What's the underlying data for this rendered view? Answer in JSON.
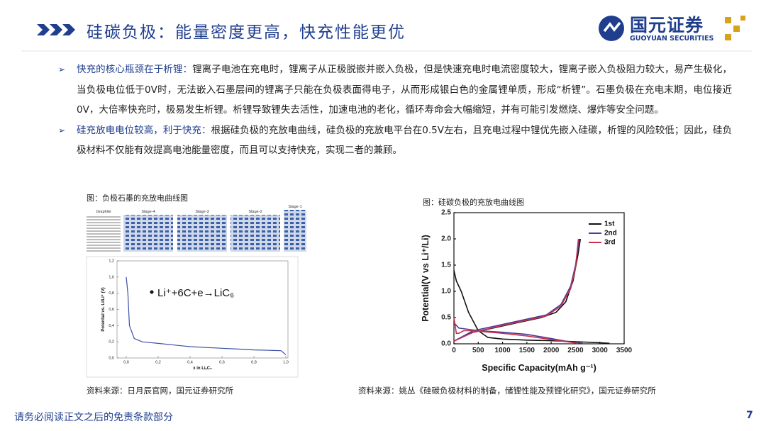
{
  "header": {
    "title": "硅碳负极：能量密度更高，快充性能更优",
    "logo": {
      "name": "国元证券",
      "subtitle": "GUOYUAN SECURITIES"
    }
  },
  "bullets": [
    {
      "lead": "快充的核心瓶颈在于析锂：",
      "text": "锂离子电池在充电时，锂离子从正极脱嵌并嵌入负极，但是快速充电时电流密度较大，锂离子嵌入负极阻力较大，易产生极化，当负极电位低于0V时，无法嵌入石墨层间的锂离子只能在负极表面得电子，从而形成银白色的金属锂单质，形成“析锂”。石墨负极在充电末期，电位接近0V，大倍率快充时，极易发生析锂。析锂导致锂失去活性，加速电池的老化，循环寿命会大幅缩短，并有可能引发燃烧、爆炸等安全问题。"
    },
    {
      "lead": "硅充放电电位较高，利于快充：",
      "text": "根据硅负极的充放电曲线，硅负极的充放电平台在0.5V左右，且充电过程中锂优先嵌入硅碳，析锂的风险较低；因此，硅负极材料不仅能有效提高电池能量密度，而且可以支持快充，实现二者的兼顾。"
    }
  ],
  "figures": [
    {
      "caption": "图：负极石墨的充放电曲线图",
      "source": "资料来源：日月辰官网，国元证券研究所",
      "stages": [
        "Graphite",
        "Stage-4",
        "Stage-3",
        "Stage-2",
        "Stage-1"
      ],
      "chart": {
        "type": "line",
        "annotation": "Li⁺+6C+e→LiC₆",
        "x_label": "x in LiₓC₆",
        "y_label": "Potential vs. Li/Li⁺ (V)",
        "xlim": [
          0,
          1
        ],
        "ylim": [
          0,
          1.2
        ],
        "xticks": [
          {
            "value": 0,
            "label": "0,0"
          },
          {
            "value": 0.2,
            "label": "0,2"
          },
          {
            "value": 0.4,
            "label": "0,4"
          },
          {
            "value": 0.6,
            "label": "0,6"
          },
          {
            "value": 0.8,
            "label": "0,8"
          },
          {
            "value": 1,
            "label": "1,0"
          }
        ],
        "yticks": [
          {
            "value": 0,
            "label": "0,0"
          },
          {
            "value": 0.2,
            "label": "0,2"
          },
          {
            "value": 0.4,
            "label": "0,4"
          },
          {
            "value": 0.6,
            "label": "0,6"
          },
          {
            "value": 0.8,
            "label": "0,8"
          },
          {
            "value": 1,
            "label": "1,0"
          },
          {
            "value": 1.2,
            "label": "1,2"
          }
        ],
        "series": [
          {
            "color": "#3a4fa8",
            "x": [
              0.0,
              0.01,
              0.02,
              0.05,
              0.1,
              0.15,
              0.2,
              0.3,
              0.4,
              0.5,
              0.6,
              0.7,
              0.8,
              0.9,
              0.97,
              1.0
            ],
            "values": [
              1.0,
              0.8,
              0.4,
              0.24,
              0.2,
              0.19,
              0.18,
              0.16,
              0.14,
              0.13,
              0.12,
              0.11,
              0.1,
              0.095,
              0.09,
              0.04
            ]
          }
        ]
      }
    },
    {
      "caption": "图：硅碳负极的充放电曲线图",
      "source": "资料来源：姚丛《硅碳负极材料的制备，储锂性能及预锂化研究》，国元证券研究所",
      "chart": {
        "type": "line",
        "legend": "upper right",
        "x_label": "Specific Capacity(mAh g⁻¹)",
        "y_label": "Potential(V vs Li⁺/Li)",
        "xlim": [
          0,
          3500
        ],
        "ylim": [
          0,
          2.5
        ],
        "xticks": [
          0,
          500,
          1000,
          1500,
          2000,
          2500,
          3000,
          3500
        ],
        "yticks": [
          {
            "value": 0,
            "label": "0.0"
          },
          0.5,
          {
            "value": 1,
            "label": "1.0"
          },
          1.5,
          {
            "value": 2,
            "label": "2.0"
          },
          2.5
        ],
        "series": [
          {
            "name": "1st",
            "color": "#111111",
            "x": [
              0,
              50,
              150,
              300,
              500,
              700,
              1000,
              1500,
              2000,
              2500,
              3000,
              3200,
              null,
              0,
              300,
              800,
              1300,
              1800,
              2100,
              2300,
              2450,
              2550,
              2600
            ],
            "values": [
              1.4,
              1.2,
              1.0,
              0.6,
              0.25,
              0.12,
              0.09,
              0.07,
              0.06,
              0.04,
              0.02,
              0.01,
              null,
              0.05,
              0.2,
              0.3,
              0.4,
              0.5,
              0.6,
              0.8,
              1.2,
              1.7,
              2.0
            ]
          },
          {
            "name": "2nd",
            "color": "#4b3a9a",
            "x": [
              0,
              100,
              500,
              1000,
              1500,
              2000,
              2300,
              2500,
              2650,
              null,
              0,
              400,
              900,
              1400,
              1900,
              2200,
              2400,
              2500,
              2580
            ],
            "values": [
              0.4,
              0.3,
              0.25,
              0.22,
              0.18,
              0.1,
              0.05,
              0.02,
              0.01,
              null,
              0.05,
              0.25,
              0.35,
              0.45,
              0.55,
              0.75,
              1.1,
              1.5,
              2.0
            ]
          },
          {
            "name": "3rd",
            "color": "#c8304e",
            "x": [
              0,
              50,
              100,
              200,
              300,
              500,
              1000,
              1500,
              2000,
              2400,
              2550,
              null,
              0,
              400,
              900,
              1400,
              1900,
              2200,
              2400,
              2500,
              2560
            ],
            "values": [
              0.5,
              0.2,
              0.2,
              0.25,
              0.25,
              0.24,
              0.2,
              0.15,
              0.08,
              0.03,
              0.01,
              null,
              0.05,
              0.22,
              0.33,
              0.43,
              0.53,
              0.72,
              1.05,
              1.45,
              2.0
            ]
          }
        ]
      }
    }
  ],
  "footer": {
    "disclaimer": "请务必阅读正文之后的免责条款部分",
    "page": "7"
  }
}
